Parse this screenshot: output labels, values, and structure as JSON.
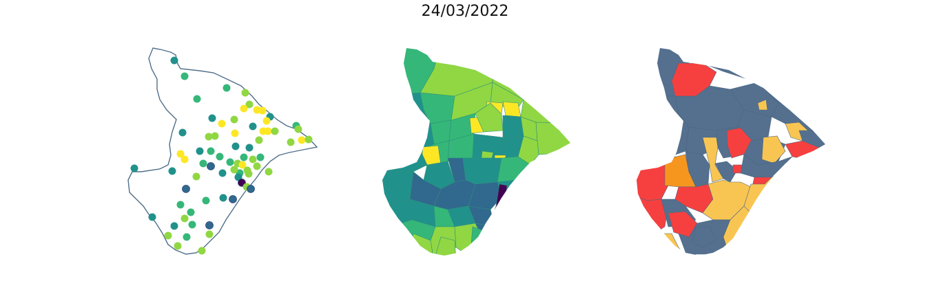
{
  "title": "24/03/2022",
  "panels": [
    {
      "kind": "station-points",
      "outline_color": "#4f6f8a"
    },
    {
      "kind": "choropleth-viridis"
    },
    {
      "kind": "choropleth-categorical",
      "colors": {
        "slate": "#54708e",
        "red": "#f64040",
        "yellow": "#f9c552",
        "orange": "#f7961e"
      }
    }
  ],
  "colors": {
    "viridis_dark": "#440154",
    "viridis_blue": "#31688e",
    "viridis_teal": "#21918c",
    "viridis_green": "#35b779",
    "viridis_lime": "#90d743",
    "viridis_yellow": "#fde725"
  }
}
